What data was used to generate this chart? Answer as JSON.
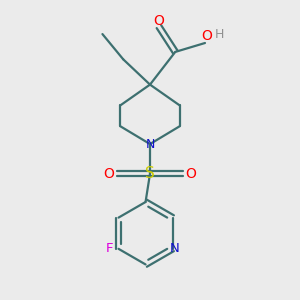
{
  "background_color": "#ebebeb",
  "bond_color": "#3d7070",
  "colors": {
    "O": "#ff0000",
    "N_piperidine": "#1010cc",
    "N_pyridine": "#1010cc",
    "S": "#cccc00",
    "F": "#dd00dd",
    "H": "#909090",
    "C": "#3d7070"
  },
  "lw": 1.6
}
